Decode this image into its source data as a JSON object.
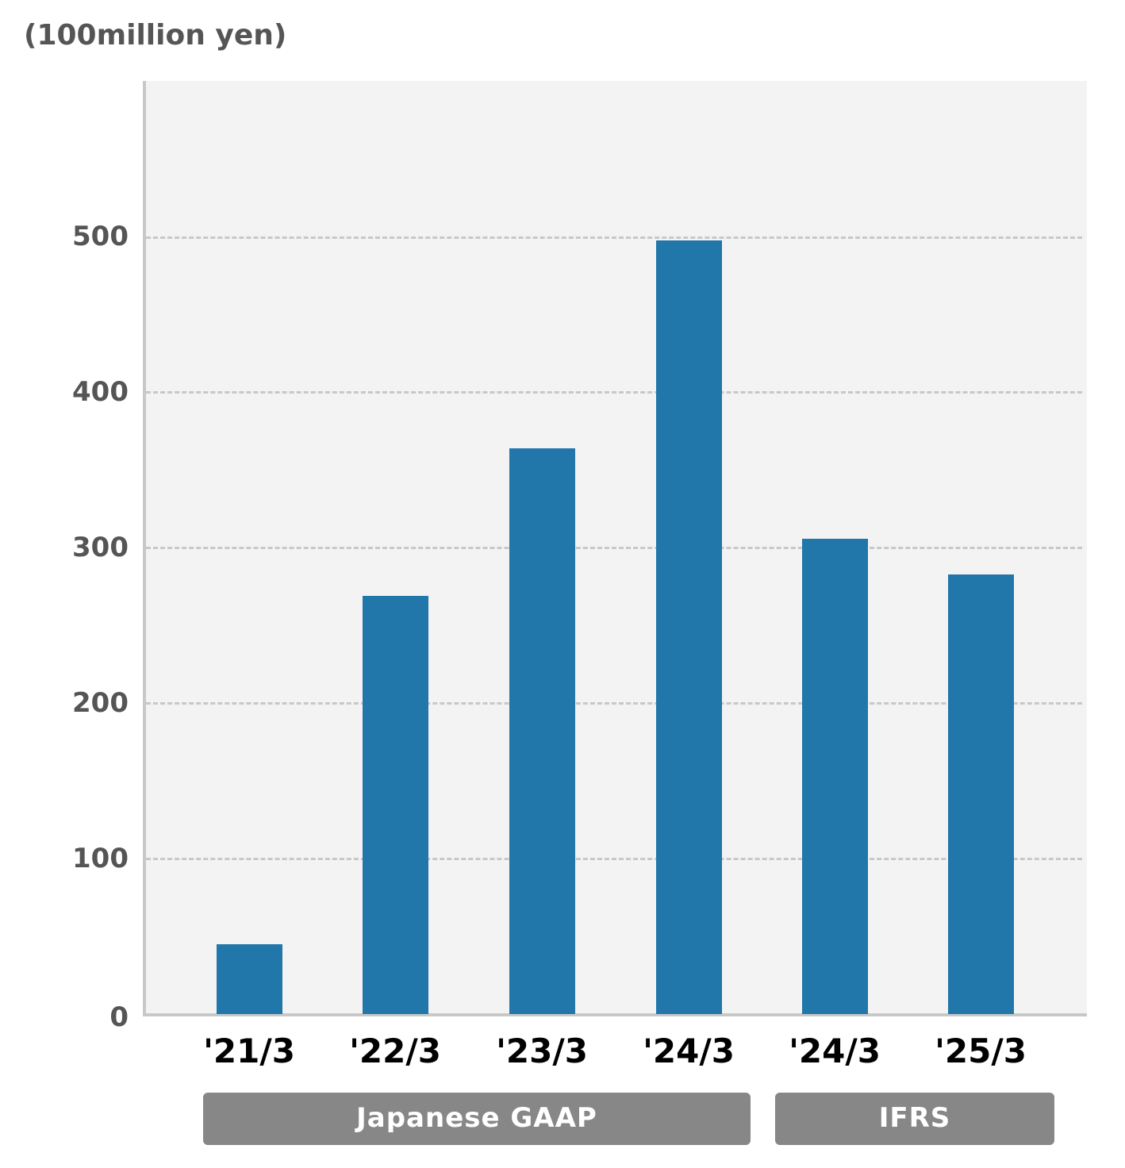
{
  "chart_data": {
    "type": "bar",
    "title": "",
    "ylabel": "(100million yen)",
    "xlabel": "",
    "categories": [
      "'21/3",
      "'22/3",
      "'23/3",
      "'24/3",
      "'24/3",
      "'25/3"
    ],
    "values": [
      45,
      269,
      364,
      498,
      306,
      283
    ],
    "ylim": [
      0,
      600
    ],
    "yticks": [
      0,
      100,
      200,
      300,
      400,
      500
    ],
    "grid": true,
    "bar_color": "#2176aa",
    "groups": [
      {
        "label": "Japanese GAAP",
        "categories": [
          "'21/3",
          "'22/3",
          "'23/3",
          "'24/3"
        ]
      },
      {
        "label": "IFRS",
        "categories": [
          "'24/3",
          "'25/3"
        ]
      }
    ]
  },
  "labels": {
    "unit": "(100million yen)",
    "yticks": [
      "0",
      "100",
      "200",
      "300",
      "400",
      "500"
    ],
    "xticks": [
      "'21/3",
      "'22/3",
      "'23/3",
      "'24/3",
      "'24/3",
      "'25/3"
    ],
    "group_gaap": "Japanese GAAP",
    "group_ifrs": "IFRS"
  }
}
